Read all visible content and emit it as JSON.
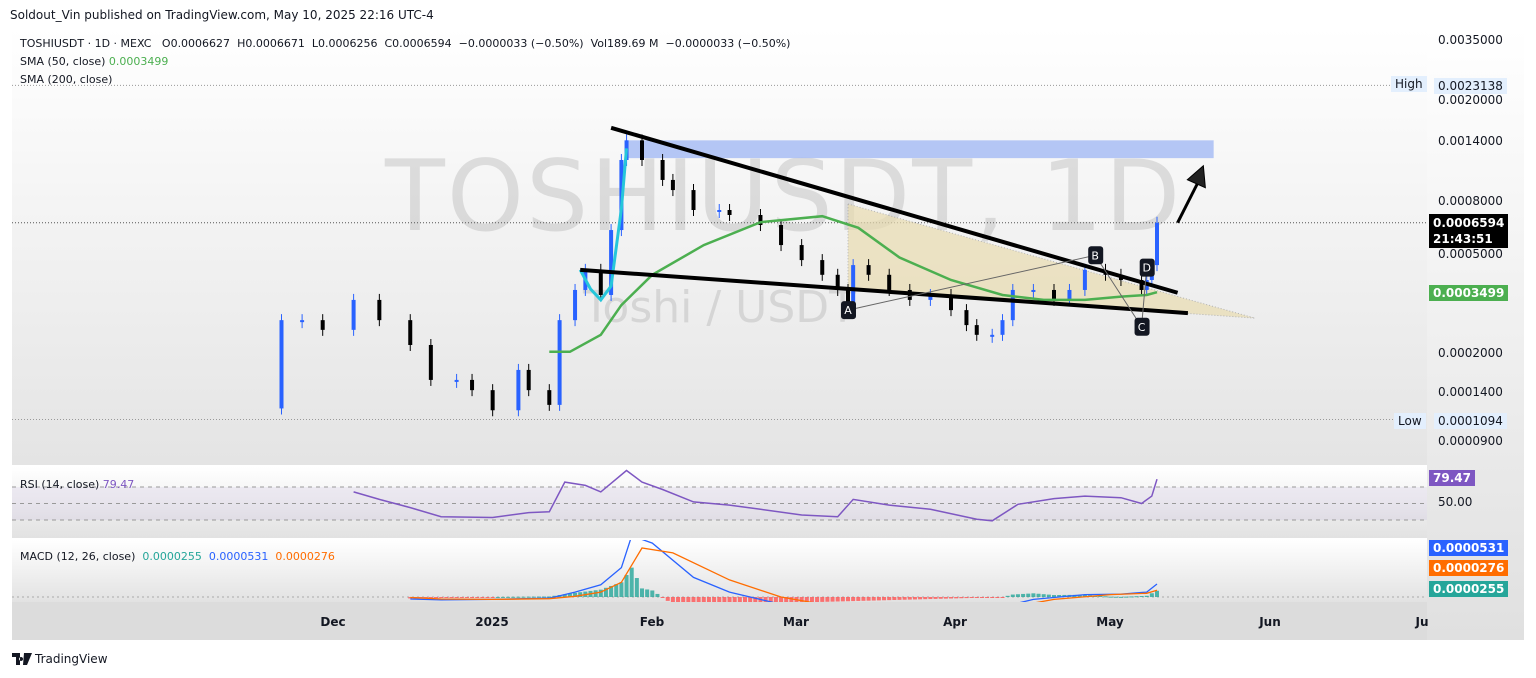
{
  "header": {
    "published": "Soldout_Vin published on TradingView.com, May 10, 2025 22:16 UTC-4"
  },
  "legend": {
    "symbol_line": "TOSHIUSDT · 1D · MEXC",
    "open": "O0.0006627",
    "high": "H0.0006671",
    "low": "L0.0006256",
    "close": "C0.0006594",
    "change": "−0.0000033 (−0.50%)",
    "volume": "Vol189.69 M",
    "volume_change": "−0.0000033 (−0.50%)",
    "sma50_label": "SMA (50, close)",
    "sma50_value": "0.0003499",
    "sma200_label": "SMA (200, close)"
  },
  "watermark": {
    "line1": "TOSHIUSDT, 1D",
    "line2": "Toshi / USDT"
  },
  "price_axis": {
    "ticks": [
      "0.0035000",
      "0.0020000",
      "0.0014000",
      "0.0008000",
      "0.0005000",
      "0.0002000",
      "0.0001400",
      "0.0000900"
    ],
    "high_label": "High",
    "high_value": "0.0023138",
    "low_label": "Low",
    "low_value": "0.0001094",
    "last_price": "0.0006594",
    "countdown": "21:43:51",
    "sma_tag": "0.0003499"
  },
  "rsi": {
    "label": "RSI (14, close)",
    "value": "79.47",
    "level_label": "50.00"
  },
  "macd": {
    "label": "MACD (12, 26, close)",
    "hist_value": "0.0000255",
    "macd_value": "0.0000531",
    "signal_value": "0.0000276"
  },
  "time_axis": {
    "labels": [
      "Dec",
      "2025",
      "Feb",
      "Mar",
      "Apr",
      "May",
      "Jun",
      "Ju"
    ]
  },
  "footer": {
    "brand": "TradingView"
  },
  "colors": {
    "up": "#2962ff",
    "down": "#000000",
    "sma50": "#4caf50",
    "rsi": "#7e57c2",
    "macd": "#2962ff",
    "signal": "#ff6d00",
    "hist_up": "#26a69a",
    "hist_down": "#ff5252",
    "zone": "#a8bdf5",
    "pattern": "#e9dcb0"
  },
  "chart_data": {
    "type": "candlestick",
    "y_scale": "log",
    "ylim": [
      9e-05,
      0.0035
    ],
    "xlim": [
      "2024-11-15",
      "2025-07-01"
    ],
    "grid": false,
    "price": {
      "first_open": 0.000121,
      "closes": [
        [
          "2024-11-21",
          0.000271
        ],
        [
          "2024-11-25",
          0.000271
        ],
        [
          "2024-11-29",
          0.000248
        ],
        [
          "2024-12-05",
          0.000326
        ],
        [
          "2024-12-10",
          0.000271
        ],
        [
          "2024-12-16",
          0.000216
        ],
        [
          "2024-12-20",
          0.000157
        ],
        [
          "2024-12-25",
          0.000157
        ],
        [
          "2024-12-28",
          0.000143
        ],
        [
          "2025-01-01",
          0.000119
        ],
        [
          "2025-01-06",
          0.000172
        ],
        [
          "2025-01-08",
          0.000143
        ],
        [
          "2025-01-12",
          0.000125
        ],
        [
          "2025-01-14",
          0.000271
        ],
        [
          "2025-01-17",
          0.000357
        ],
        [
          "2025-01-19",
          0.000429
        ],
        [
          "2025-01-22",
          0.000341
        ],
        [
          "2025-01-24",
          0.000617
        ],
        [
          "2025-01-26",
          0.00117
        ],
        [
          "2025-01-27",
          0.0014
        ],
        [
          "2025-01-30",
          0.00117
        ],
        [
          "2025-02-03",
          0.000975
        ],
        [
          "2025-02-05",
          0.000889
        ],
        [
          "2025-02-09",
          0.000741
        ],
        [
          "2025-02-14",
          0.000741
        ],
        [
          "2025-02-16",
          0.000708
        ],
        [
          "2025-02-22",
          0.000646
        ],
        [
          "2025-02-26",
          0.000538
        ],
        [
          "2025-03-02",
          0.000469
        ],
        [
          "2025-03-06",
          0.00041
        ],
        [
          "2025-03-09",
          0.000357
        ],
        [
          "2025-03-11",
          0.000297
        ],
        [
          "2025-03-12",
          0.000448
        ],
        [
          "2025-03-15",
          0.00041
        ],
        [
          "2025-03-19",
          0.000357
        ],
        [
          "2025-03-23",
          0.000326
        ],
        [
          "2025-03-27",
          0.000341
        ],
        [
          "2025-03-31",
          0.000297
        ],
        [
          "2025-04-03",
          0.000259
        ],
        [
          "2025-04-05",
          0.000237
        ],
        [
          "2025-04-08",
          0.000237
        ],
        [
          "2025-04-10",
          0.000271
        ],
        [
          "2025-04-12",
          0.000357
        ],
        [
          "2025-04-16",
          0.000357
        ],
        [
          "2025-04-20",
          0.000326
        ],
        [
          "2025-04-23",
          0.000357
        ],
        [
          "2025-04-26",
          0.000429
        ],
        [
          "2025-04-30",
          0.00041
        ],
        [
          "2025-05-03",
          0.000391
        ],
        [
          "2025-05-07",
          0.000357
        ],
        [
          "2025-05-08",
          0.000391
        ],
        [
          "2025-05-09",
          0.000448
        ],
        [
          "2025-05-10",
          0.0006594
        ]
      ],
      "high": 0.0023138,
      "low": 0.0001094,
      "last": 0.0006594
    },
    "sma50": [
      [
        "2025-01-12",
        0.000203
      ],
      [
        "2025-01-16",
        0.000203
      ],
      [
        "2025-01-22",
        0.000237
      ],
      [
        "2025-01-26",
        0.000311
      ],
      [
        "2025-02-01",
        0.00041
      ],
      [
        "2025-02-11",
        0.000538
      ],
      [
        "2025-02-22",
        0.000663
      ],
      [
        "2025-03-06",
        0.0007
      ],
      [
        "2025-03-13",
        0.00063
      ],
      [
        "2025-03-21",
        0.00048
      ],
      [
        "2025-03-31",
        0.000391
      ],
      [
        "2025-04-10",
        0.000341
      ],
      [
        "2025-04-18",
        0.000326
      ],
      [
        "2025-04-26",
        0.000326
      ],
      [
        "2025-05-03",
        0.000336
      ],
      [
        "2025-05-08",
        0.000341
      ],
      [
        "2025-05-10",
        0.0003499
      ]
    ],
    "annotations": {
      "upper_trendline": [
        [
          "2025-01-24",
          0.00157
        ],
        [
          "2025-05-14",
          0.000348
        ]
      ],
      "lower_trendline": [
        [
          "2025-01-18",
          0.000429
        ],
        [
          "2025-05-16",
          0.000289
        ]
      ],
      "brush_curve": [
        [
          "2025-01-18",
          0.000429
        ],
        [
          "2025-01-20",
          0.00036
        ],
        [
          "2025-01-22",
          0.000326
        ],
        [
          "2025-01-24",
          0.00037
        ],
        [
          "2025-01-26",
          0.00075
        ],
        [
          "2025-01-27",
          0.0013
        ]
      ],
      "target_zone": {
        "from": "2025-01-27",
        "to": "2025-05-21",
        "top": 0.0014,
        "bottom": 0.00119
      },
      "arrow": [
        [
          "2025-05-14",
          0.00066
        ],
        [
          "2025-05-19",
          0.00111
        ]
      ],
      "pattern_triangle": [
        [
          "2025-03-11",
          0.000783
        ],
        [
          "2025-05-29",
          0.000276
        ],
        [
          "2025-03-11",
          0.000357
        ]
      ],
      "points": [
        {
          "label": "A",
          "date": "2025-03-11",
          "price": 0.000297
        },
        {
          "label": "B",
          "date": "2025-04-28",
          "price": 0.00049
        },
        {
          "label": "C",
          "date": "2025-05-07",
          "price": 0.000255
        },
        {
          "label": "D",
          "date": "2025-05-08",
          "price": 0.000438
        }
      ]
    },
    "rsi": {
      "levels": [
        70,
        50,
        30
      ],
      "values": [
        [
          "2024-12-05",
          64
        ],
        [
          "2024-12-10",
          55
        ],
        [
          "2024-12-16",
          45
        ],
        [
          "2024-12-22",
          34
        ],
        [
          "2025-01-01",
          33
        ],
        [
          "2025-01-08",
          39
        ],
        [
          "2025-01-12",
          40
        ],
        [
          "2025-01-15",
          76
        ],
        [
          "2025-01-19",
          72
        ],
        [
          "2025-01-22",
          64
        ],
        [
          "2025-01-27",
          90
        ],
        [
          "2025-01-30",
          76
        ],
        [
          "2025-02-03",
          67
        ],
        [
          "2025-02-09",
          52
        ],
        [
          "2025-02-16",
          48
        ],
        [
          "2025-02-22",
          43
        ],
        [
          "2025-03-02",
          36
        ],
        [
          "2025-03-09",
          34
        ],
        [
          "2025-03-12",
          55
        ],
        [
          "2025-03-19",
          48
        ],
        [
          "2025-03-27",
          43
        ],
        [
          "2025-04-05",
          31
        ],
        [
          "2025-04-08",
          29
        ],
        [
          "2025-04-13",
          49
        ],
        [
          "2025-04-20",
          56
        ],
        [
          "2025-04-26",
          59
        ],
        [
          "2025-05-03",
          57
        ],
        [
          "2025-05-07",
          50
        ],
        [
          "2025-05-09",
          59
        ],
        [
          "2025-05-10",
          79.47
        ]
      ]
    },
    "macd": {
      "macd": [
        [
          "2024-12-16",
          -8e-06
        ],
        [
          "2024-12-22",
          -1.2e-05
        ],
        [
          "2025-01-01",
          -1e-05
        ],
        [
          "2025-01-12",
          -5e-06
        ],
        [
          "2025-01-17",
          2e-05
        ],
        [
          "2025-01-22",
          5e-05
        ],
        [
          "2025-01-26",
          0.00012
        ],
        [
          "2025-01-28",
          0.00025
        ],
        [
          "2025-02-01",
          0.00022
        ],
        [
          "2025-02-09",
          8e-05
        ],
        [
          "2025-02-16",
          2e-05
        ],
        [
          "2025-02-26",
          -3e-05
        ],
        [
          "2025-03-06",
          -5e-05
        ],
        [
          "2025-04-10",
          -4e-05
        ],
        [
          "2025-04-16",
          -1e-05
        ],
        [
          "2025-04-26",
          1e-05
        ],
        [
          "2025-05-03",
          1.2e-05
        ],
        [
          "2025-05-08",
          2e-05
        ],
        [
          "2025-05-10",
          5.31e-05
        ]
      ],
      "signal": [
        [
          "2024-12-16",
          -2e-06
        ],
        [
          "2024-12-22",
          -8e-06
        ],
        [
          "2025-01-01",
          -1e-05
        ],
        [
          "2025-01-12",
          -7e-06
        ],
        [
          "2025-01-17",
          3e-06
        ],
        [
          "2025-01-22",
          2e-05
        ],
        [
          "2025-01-26",
          6e-05
        ],
        [
          "2025-01-30",
          0.0002
        ],
        [
          "2025-02-05",
          0.00018
        ],
        [
          "2025-02-16",
          7e-05
        ],
        [
          "2025-02-26",
          0.0
        ],
        [
          "2025-03-06",
          -3e-05
        ],
        [
          "2025-04-12",
          -4e-05
        ],
        [
          "2025-04-20",
          -1e-05
        ],
        [
          "2025-05-01",
          1e-05
        ],
        [
          "2025-05-08",
          1.5e-05
        ],
        [
          "2025-05-10",
          2.76e-05
        ]
      ]
    }
  }
}
